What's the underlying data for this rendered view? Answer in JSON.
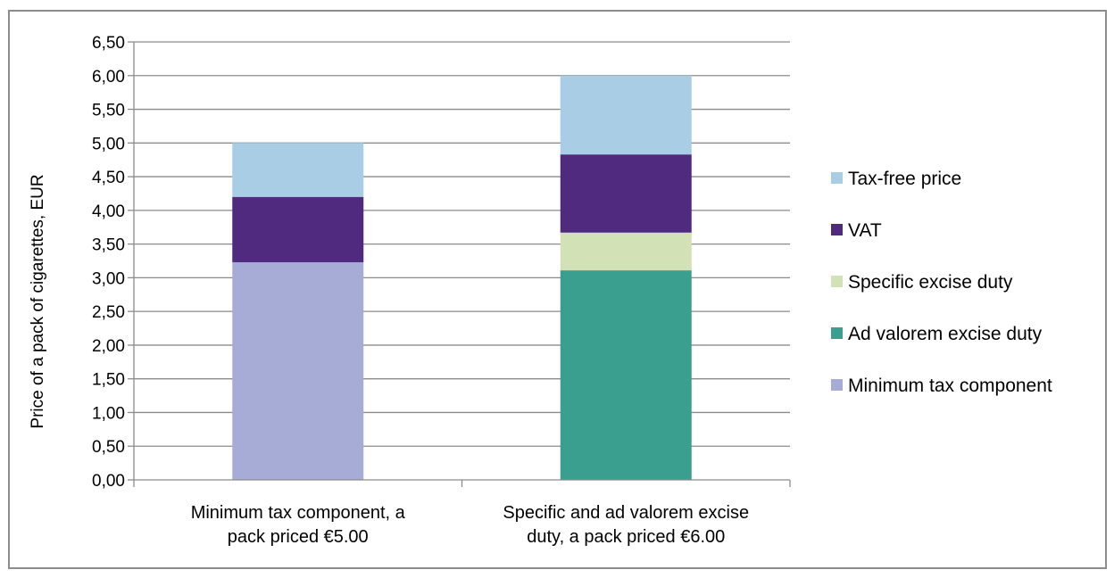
{
  "chart_data": {
    "type": "bar",
    "stacked": true,
    "title": "",
    "xlabel": "",
    "ylabel": "Price of a pack of cigarettes, EUR",
    "ylim": [
      0,
      6.5
    ],
    "ytick_step": 0.5,
    "ytick_labels": [
      "0,00",
      "0,50",
      "1,00",
      "1,50",
      "2,00",
      "2,50",
      "3,00",
      "3,50",
      "4,00",
      "4,50",
      "5,00",
      "5,50",
      "6,00",
      "6,50"
    ],
    "grid": true,
    "legend_position": "right",
    "categories": [
      [
        "Minimum tax component, a",
        "pack priced €5.00"
      ],
      [
        "Specific and ad valorem excise",
        "duty, a pack priced €6.00"
      ]
    ],
    "series": [
      {
        "name": "Minimum tax component",
        "color": "#a6acd5",
        "values": [
          3.23,
          0
        ]
      },
      {
        "name": "Ad valorem excise duty",
        "color": "#3a9f8f",
        "values": [
          0,
          3.11
        ]
      },
      {
        "name": "Specific excise duty",
        "color": "#d3e1b6",
        "values": [
          0,
          0.56
        ]
      },
      {
        "name": "VAT",
        "color": "#4f2a7e",
        "values": [
          0.97,
          1.16
        ]
      },
      {
        "name": "Tax-free price",
        "color": "#a8cde4",
        "values": [
          0.8,
          1.17
        ]
      }
    ],
    "legend_order": [
      "Tax-free price",
      "VAT",
      "Specific excise duty",
      "Ad valorem excise duty",
      "Minimum tax component"
    ]
  }
}
